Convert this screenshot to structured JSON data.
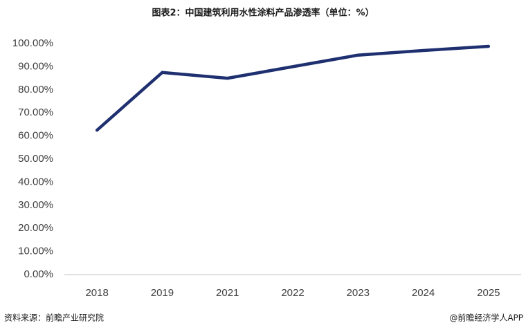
{
  "chart_data": {
    "type": "line",
    "title": "图表2：中国建筑利用水性涂料产品渗透率（单位：%）",
    "categories": [
      "2018",
      "2019",
      "2021",
      "2022",
      "2023",
      "2024",
      "2025"
    ],
    "series": [
      {
        "name": "渗透率",
        "color": "#1f3070",
        "values": [
          62.5,
          87.5,
          85,
          90,
          95,
          97,
          98.8
        ]
      }
    ],
    "ylim": [
      0,
      100
    ],
    "yticks": [
      {
        "value": 0,
        "label": "0.00%"
      },
      {
        "value": 10,
        "label": "10.00%"
      },
      {
        "value": 20,
        "label": "20.00%"
      },
      {
        "value": 30,
        "label": "30.00%"
      },
      {
        "value": 40,
        "label": "40.00%"
      },
      {
        "value": 50,
        "label": "50.00%"
      },
      {
        "value": 60,
        "label": "60.00%"
      },
      {
        "value": 70,
        "label": "70.00%"
      },
      {
        "value": 80,
        "label": "80.00%"
      },
      {
        "value": 90,
        "label": "90.00%"
      },
      {
        "value": 100,
        "label": "100.00%"
      }
    ],
    "grid": false,
    "source": "资料来源：前瞻产业研究院",
    "credit": "@前瞻经济学人APP"
  }
}
